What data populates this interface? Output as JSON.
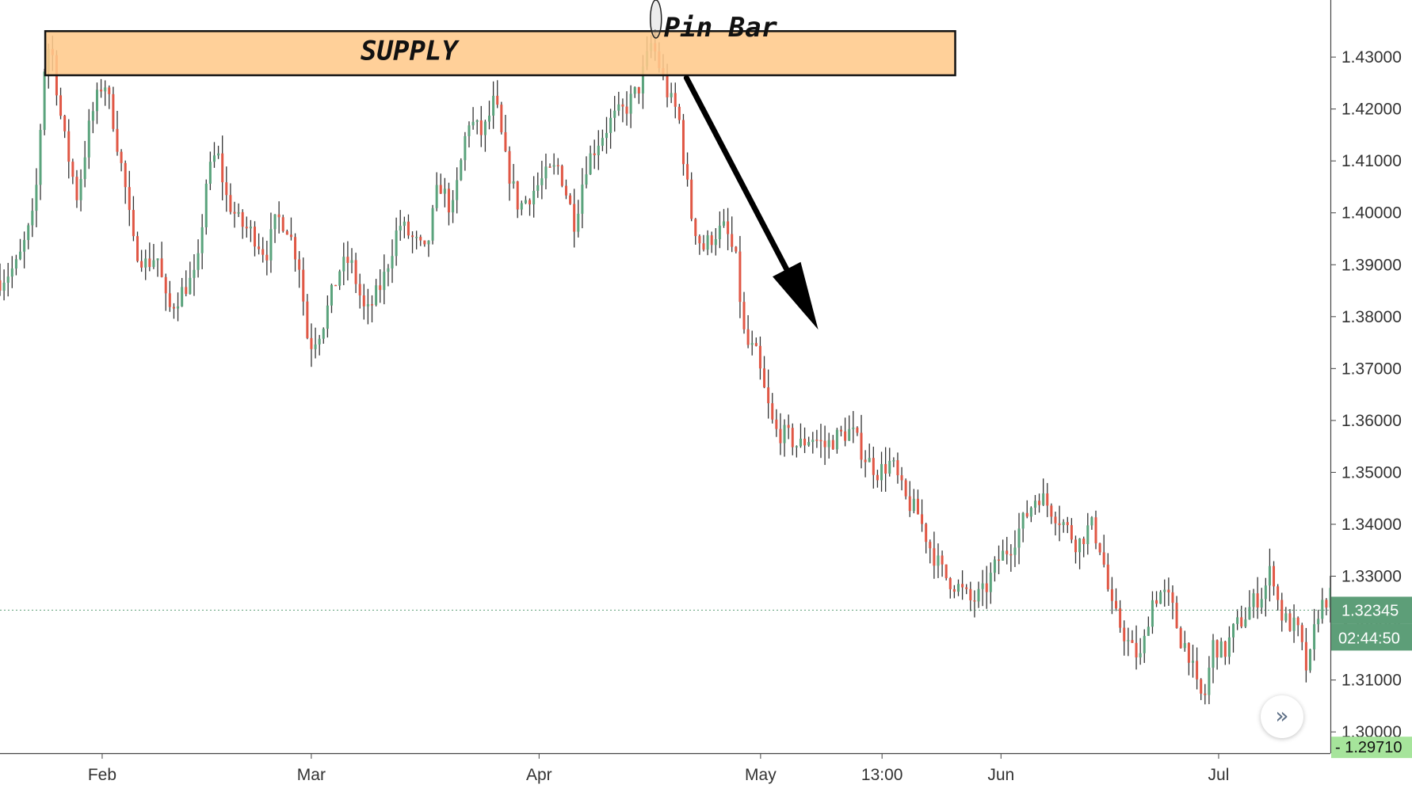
{
  "chart_data": {
    "type": "candlestick",
    "title": "",
    "xlabel": "",
    "ylabel": "",
    "ylim": [
      1.2959,
      1.441
    ],
    "y_ticks": [
      "1.30000",
      "1.31000",
      "1.32000",
      "1.33000",
      "1.34000",
      "1.35000",
      "1.36000",
      "1.37000",
      "1.38000",
      "1.39000",
      "1.40000",
      "1.41000",
      "1.42000",
      "1.43000"
    ],
    "x_ticks": [
      "Feb",
      "Mar",
      "Apr",
      "May",
      "13:00",
      "Jun",
      "Jul"
    ],
    "x_tick_positions": [
      0.0768,
      0.234,
      0.4052,
      0.5717,
      0.663,
      0.7524,
      0.916
    ],
    "current_price": "1.32345",
    "countdown": "02:44:50",
    "low_marker": "1.29710",
    "price_path": [
      [
        0.0,
        1.387
      ],
      [
        0.013,
        1.39
      ],
      [
        0.026,
        1.4
      ],
      [
        0.034,
        1.43
      ],
      [
        0.038,
        1.433
      ],
      [
        0.047,
        1.416
      ],
      [
        0.058,
        1.403
      ],
      [
        0.068,
        1.418
      ],
      [
        0.078,
        1.426
      ],
      [
        0.085,
        1.418
      ],
      [
        0.094,
        1.405
      ],
      [
        0.1,
        1.394
      ],
      [
        0.11,
        1.39
      ],
      [
        0.118,
        1.392
      ],
      [
        0.126,
        1.381
      ],
      [
        0.14,
        1.386
      ],
      [
        0.148,
        1.388
      ],
      [
        0.155,
        1.406
      ],
      [
        0.163,
        1.412
      ],
      [
        0.17,
        1.403
      ],
      [
        0.18,
        1.398
      ],
      [
        0.19,
        1.396
      ],
      [
        0.2,
        1.392
      ],
      [
        0.208,
        1.399
      ],
      [
        0.215,
        1.398
      ],
      [
        0.225,
        1.39
      ],
      [
        0.232,
        1.374
      ],
      [
        0.242,
        1.378
      ],
      [
        0.255,
        1.389
      ],
      [
        0.263,
        1.391
      ],
      [
        0.275,
        1.38
      ],
      [
        0.288,
        1.387
      ],
      [
        0.3,
        1.398
      ],
      [
        0.31,
        1.395
      ],
      [
        0.32,
        1.392
      ],
      [
        0.33,
        1.406
      ],
      [
        0.34,
        1.4
      ],
      [
        0.352,
        1.418
      ],
      [
        0.363,
        1.415
      ],
      [
        0.372,
        1.422
      ],
      [
        0.38,
        1.41
      ],
      [
        0.39,
        1.401
      ],
      [
        0.4,
        1.404
      ],
      [
        0.41,
        1.407
      ],
      [
        0.42,
        1.409
      ],
      [
        0.432,
        1.398
      ],
      [
        0.44,
        1.409
      ],
      [
        0.45,
        1.414
      ],
      [
        0.46,
        1.418
      ],
      [
        0.47,
        1.42
      ],
      [
        0.48,
        1.424
      ],
      [
        0.49,
        1.433
      ],
      [
        0.497,
        1.427
      ],
      [
        0.503,
        1.422
      ],
      [
        0.51,
        1.419
      ],
      [
        0.515,
        1.408
      ],
      [
        0.52,
        1.399
      ],
      [
        0.528,
        1.393
      ],
      [
        0.537,
        1.396
      ],
      [
        0.545,
        1.397
      ],
      [
        0.553,
        1.391
      ],
      [
        0.56,
        1.375
      ],
      [
        0.568,
        1.373
      ],
      [
        0.575,
        1.365
      ],
      [
        0.582,
        1.358
      ],
      [
        0.592,
        1.357
      ],
      [
        0.6,
        1.355
      ],
      [
        0.61,
        1.357
      ],
      [
        0.62,
        1.355
      ],
      [
        0.63,
        1.357
      ],
      [
        0.64,
        1.358
      ],
      [
        0.65,
        1.353
      ],
      [
        0.66,
        1.35
      ],
      [
        0.67,
        1.352
      ],
      [
        0.68,
        1.345
      ],
      [
        0.69,
        1.342
      ],
      [
        0.7,
        1.335
      ],
      [
        0.71,
        1.33
      ],
      [
        0.72,
        1.328
      ],
      [
        0.73,
        1.325
      ],
      [
        0.74,
        1.327
      ],
      [
        0.75,
        1.333
      ],
      [
        0.76,
        1.336
      ],
      [
        0.77,
        1.341
      ],
      [
        0.78,
        1.346
      ],
      [
        0.79,
        1.343
      ],
      [
        0.8,
        1.34
      ],
      [
        0.81,
        1.336
      ],
      [
        0.82,
        1.34
      ],
      [
        0.828,
        1.335
      ],
      [
        0.835,
        1.324
      ],
      [
        0.843,
        1.32
      ],
      [
        0.85,
        1.316
      ],
      [
        0.858,
        1.314
      ],
      [
        0.865,
        1.325
      ],
      [
        0.873,
        1.327
      ],
      [
        0.88,
        1.325
      ],
      [
        0.887,
        1.318
      ],
      [
        0.893,
        1.316
      ],
      [
        0.9,
        1.308
      ],
      [
        0.905,
        1.306
      ],
      [
        0.912,
        1.317
      ],
      [
        0.92,
        1.315
      ],
      [
        0.928,
        1.32
      ],
      [
        0.935,
        1.322
      ],
      [
        0.942,
        1.325
      ],
      [
        0.95,
        1.327
      ],
      [
        0.956,
        1.332
      ],
      [
        0.962,
        1.323
      ],
      [
        0.968,
        1.321
      ],
      [
        0.975,
        1.32
      ],
      [
        0.983,
        1.311
      ],
      [
        0.99,
        1.323
      ],
      [
        0.998,
        1.326
      ]
    ],
    "annotations": {
      "supply_zone": {
        "label": "SUPPLY",
        "y_from": 1.4265,
        "y_to": 1.435,
        "x_from": 0.034,
        "x_to": 0.718,
        "color": "#ffc98b",
        "border": "#111111"
      },
      "pin_bar": {
        "label": "Pin Bar",
        "x": 0.493,
        "y": 1.4335
      },
      "arrow": {
        "from": [
          0.516,
          1.426
        ],
        "to": [
          0.615,
          1.3775
        ],
        "color": "#000000"
      }
    },
    "colors": {
      "bull": "#5aa37c",
      "bear": "#e05745",
      "wick": "#333333",
      "current_price_badge": "#5d9e78",
      "low_badge": "#a6e49b"
    },
    "grid": false,
    "legend": "none"
  },
  "ui": {
    "scroll_to_latest_icon": "double-chevron-right-icon"
  }
}
